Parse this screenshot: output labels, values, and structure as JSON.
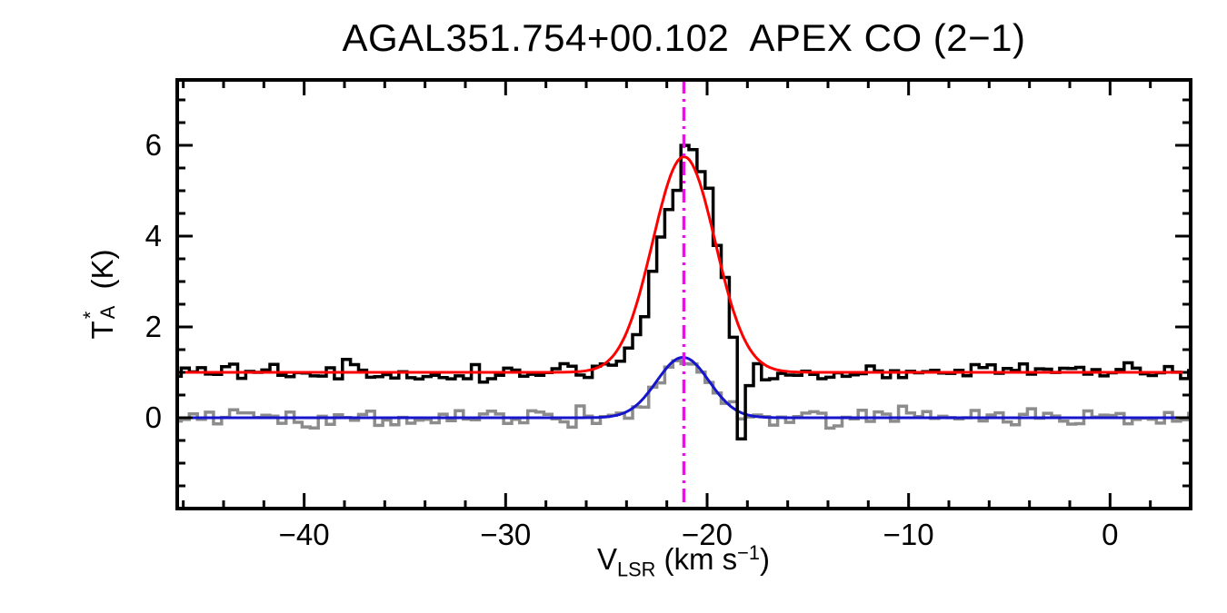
{
  "title": "AGAL351.754+00.102  APEX CO (2−1)",
  "axes": {
    "x_prefix": "V",
    "x_sub": "LSR",
    "x_mid": " (km s",
    "x_sup": "−1",
    "x_end": ")",
    "y_letter": "T",
    "y_sup": "*",
    "y_sub": "A",
    "y_suffix": " (K)"
  },
  "chart_data": {
    "type": "line",
    "title": "AGAL351.754+00.102  APEX CO (2−1)",
    "xlabel": "V_LSR (km s^-1)",
    "ylabel": "T_A^* (K)",
    "xlim": [
      -46.3,
      4.0
    ],
    "ylim": [
      -2.0,
      7.44
    ],
    "x_major_ticks": [
      -40,
      -30,
      -20,
      -10,
      0
    ],
    "x_minor_step": 2,
    "y_major_ticks": [
      0,
      2,
      4,
      6
    ],
    "y_minor_step": 0.5,
    "channel_width": 0.4,
    "noise_seed": 77,
    "systemic_velocity": -21.15,
    "series": [
      {
        "name": "co21-observed-spectrum",
        "style": "histogram",
        "color": "#000000",
        "line_width": 3.5,
        "z": 3,
        "baseline": 1.0,
        "noise_sigma": 0.1,
        "components": [
          {
            "amp": 5.0,
            "center": -20.9,
            "sigma": 1.35
          },
          {
            "amp": -0.6,
            "center": -21.6,
            "sigma": 0.2
          },
          {
            "amp": -2.2,
            "center": -18.3,
            "sigma": 0.25
          }
        ]
      },
      {
        "name": "secondary-observed-spectrum",
        "style": "histogram",
        "color": "#8c8c8c",
        "line_width": 3.5,
        "z": 1,
        "baseline": 0.0,
        "noise_sigma": 0.09,
        "components": [
          {
            "amp": 1.3,
            "center": -21.2,
            "sigma": 1.25
          }
        ]
      },
      {
        "name": "gaussian-fit-main",
        "style": "smooth",
        "color": "#ff0000",
        "line_width": 3.0,
        "z": 4,
        "baseline": 1.0,
        "noise_sigma": 0,
        "components": [
          {
            "amp": 4.75,
            "center": -21.15,
            "sigma": 1.55
          }
        ]
      },
      {
        "name": "gaussian-fit-secondary",
        "style": "smooth",
        "color": "#1515cc",
        "line_width": 3.0,
        "z": 2,
        "baseline": 0.0,
        "noise_sigma": 0,
        "components": [
          {
            "amp": 1.33,
            "center": -21.2,
            "sigma": 1.3
          }
        ]
      }
    ],
    "vline": {
      "x": -21.15,
      "color": "#ff00ff",
      "width": 3.5,
      "dash": "dash-dot"
    }
  }
}
